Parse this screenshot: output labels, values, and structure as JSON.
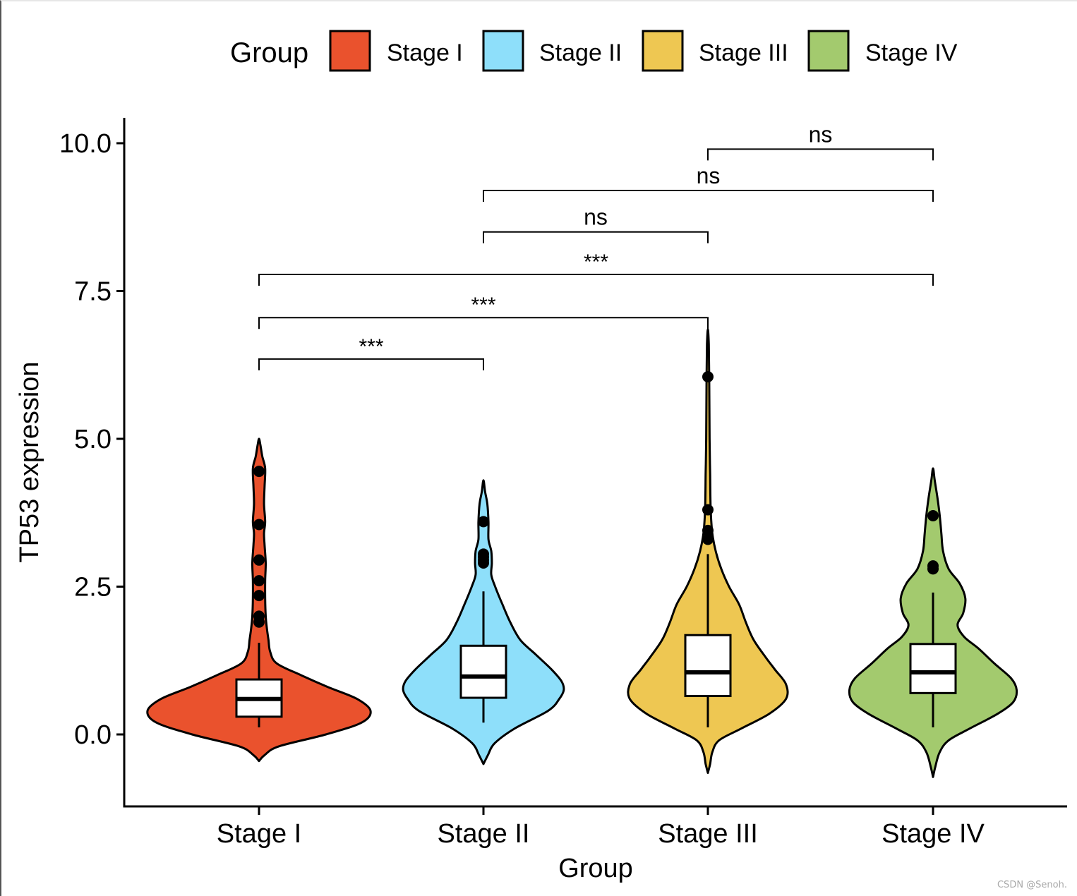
{
  "chart_data": {
    "type": "violin",
    "title": "",
    "xlabel": "Group",
    "ylabel": "TP53  expression",
    "ylim": [
      -1.2,
      10.4
    ],
    "yticks": [
      0.0,
      2.5,
      5.0,
      7.5,
      10.0
    ],
    "ytick_labels": [
      "0.0",
      "2.5",
      "5.0",
      "7.5",
      "10.0"
    ],
    "legend": {
      "title": "Group",
      "position": "top",
      "entries": [
        "Stage I",
        "Stage II",
        "Stage III",
        "Stage IV"
      ]
    },
    "categories": [
      "Stage I",
      "Stage II",
      "Stage III",
      "Stage IV"
    ],
    "colors": [
      "#EA522D",
      "#8EDFFA",
      "#EEC752",
      "#A3CA6E"
    ],
    "series": [
      {
        "name": "Stage I",
        "box": {
          "q1": 0.3,
          "median": 0.6,
          "q3": 0.93,
          "whisker_low": 0.12,
          "whisker_high": 1.55
        },
        "violin_range": [
          -0.45,
          5.0
        ],
        "outliers": [
          1.9,
          2.0,
          2.35,
          2.6,
          2.95,
          3.55,
          4.45
        ]
      },
      {
        "name": "Stage II",
        "box": {
          "q1": 0.62,
          "median": 0.98,
          "q3": 1.5,
          "whisker_low": 0.2,
          "whisker_high": 2.42
        },
        "violin_range": [
          -0.5,
          4.3
        ],
        "outliers": [
          2.9,
          2.95,
          3.0,
          3.05,
          3.6
        ]
      },
      {
        "name": "Stage III",
        "box": {
          "q1": 0.65,
          "median": 1.05,
          "q3": 1.68,
          "whisker_low": 0.12,
          "whisker_high": 3.05
        },
        "violin_range": [
          -0.65,
          6.85
        ],
        "outliers": [
          3.3,
          3.45,
          3.8,
          6.05
        ]
      },
      {
        "name": "Stage IV",
        "box": {
          "q1": 0.7,
          "median": 1.05,
          "q3": 1.53,
          "whisker_low": 0.12,
          "whisker_high": 2.4
        },
        "violin_range": [
          -0.72,
          4.5
        ],
        "outliers": [
          2.8,
          2.85,
          3.7
        ]
      }
    ],
    "comparisons": [
      {
        "groups": [
          "Stage I",
          "Stage II"
        ],
        "y": 6.35,
        "label": "***"
      },
      {
        "groups": [
          "Stage I",
          "Stage III"
        ],
        "y": 7.05,
        "label": "***"
      },
      {
        "groups": [
          "Stage I",
          "Stage IV"
        ],
        "y": 7.78,
        "label": "***"
      },
      {
        "groups": [
          "Stage II",
          "Stage III"
        ],
        "y": 8.5,
        "label": "ns"
      },
      {
        "groups": [
          "Stage II",
          "Stage IV"
        ],
        "y": 9.2,
        "label": "ns"
      },
      {
        "groups": [
          "Stage III",
          "Stage IV"
        ],
        "y": 9.9,
        "label": "ns"
      }
    ]
  },
  "watermark": "CSDN @Senoh."
}
